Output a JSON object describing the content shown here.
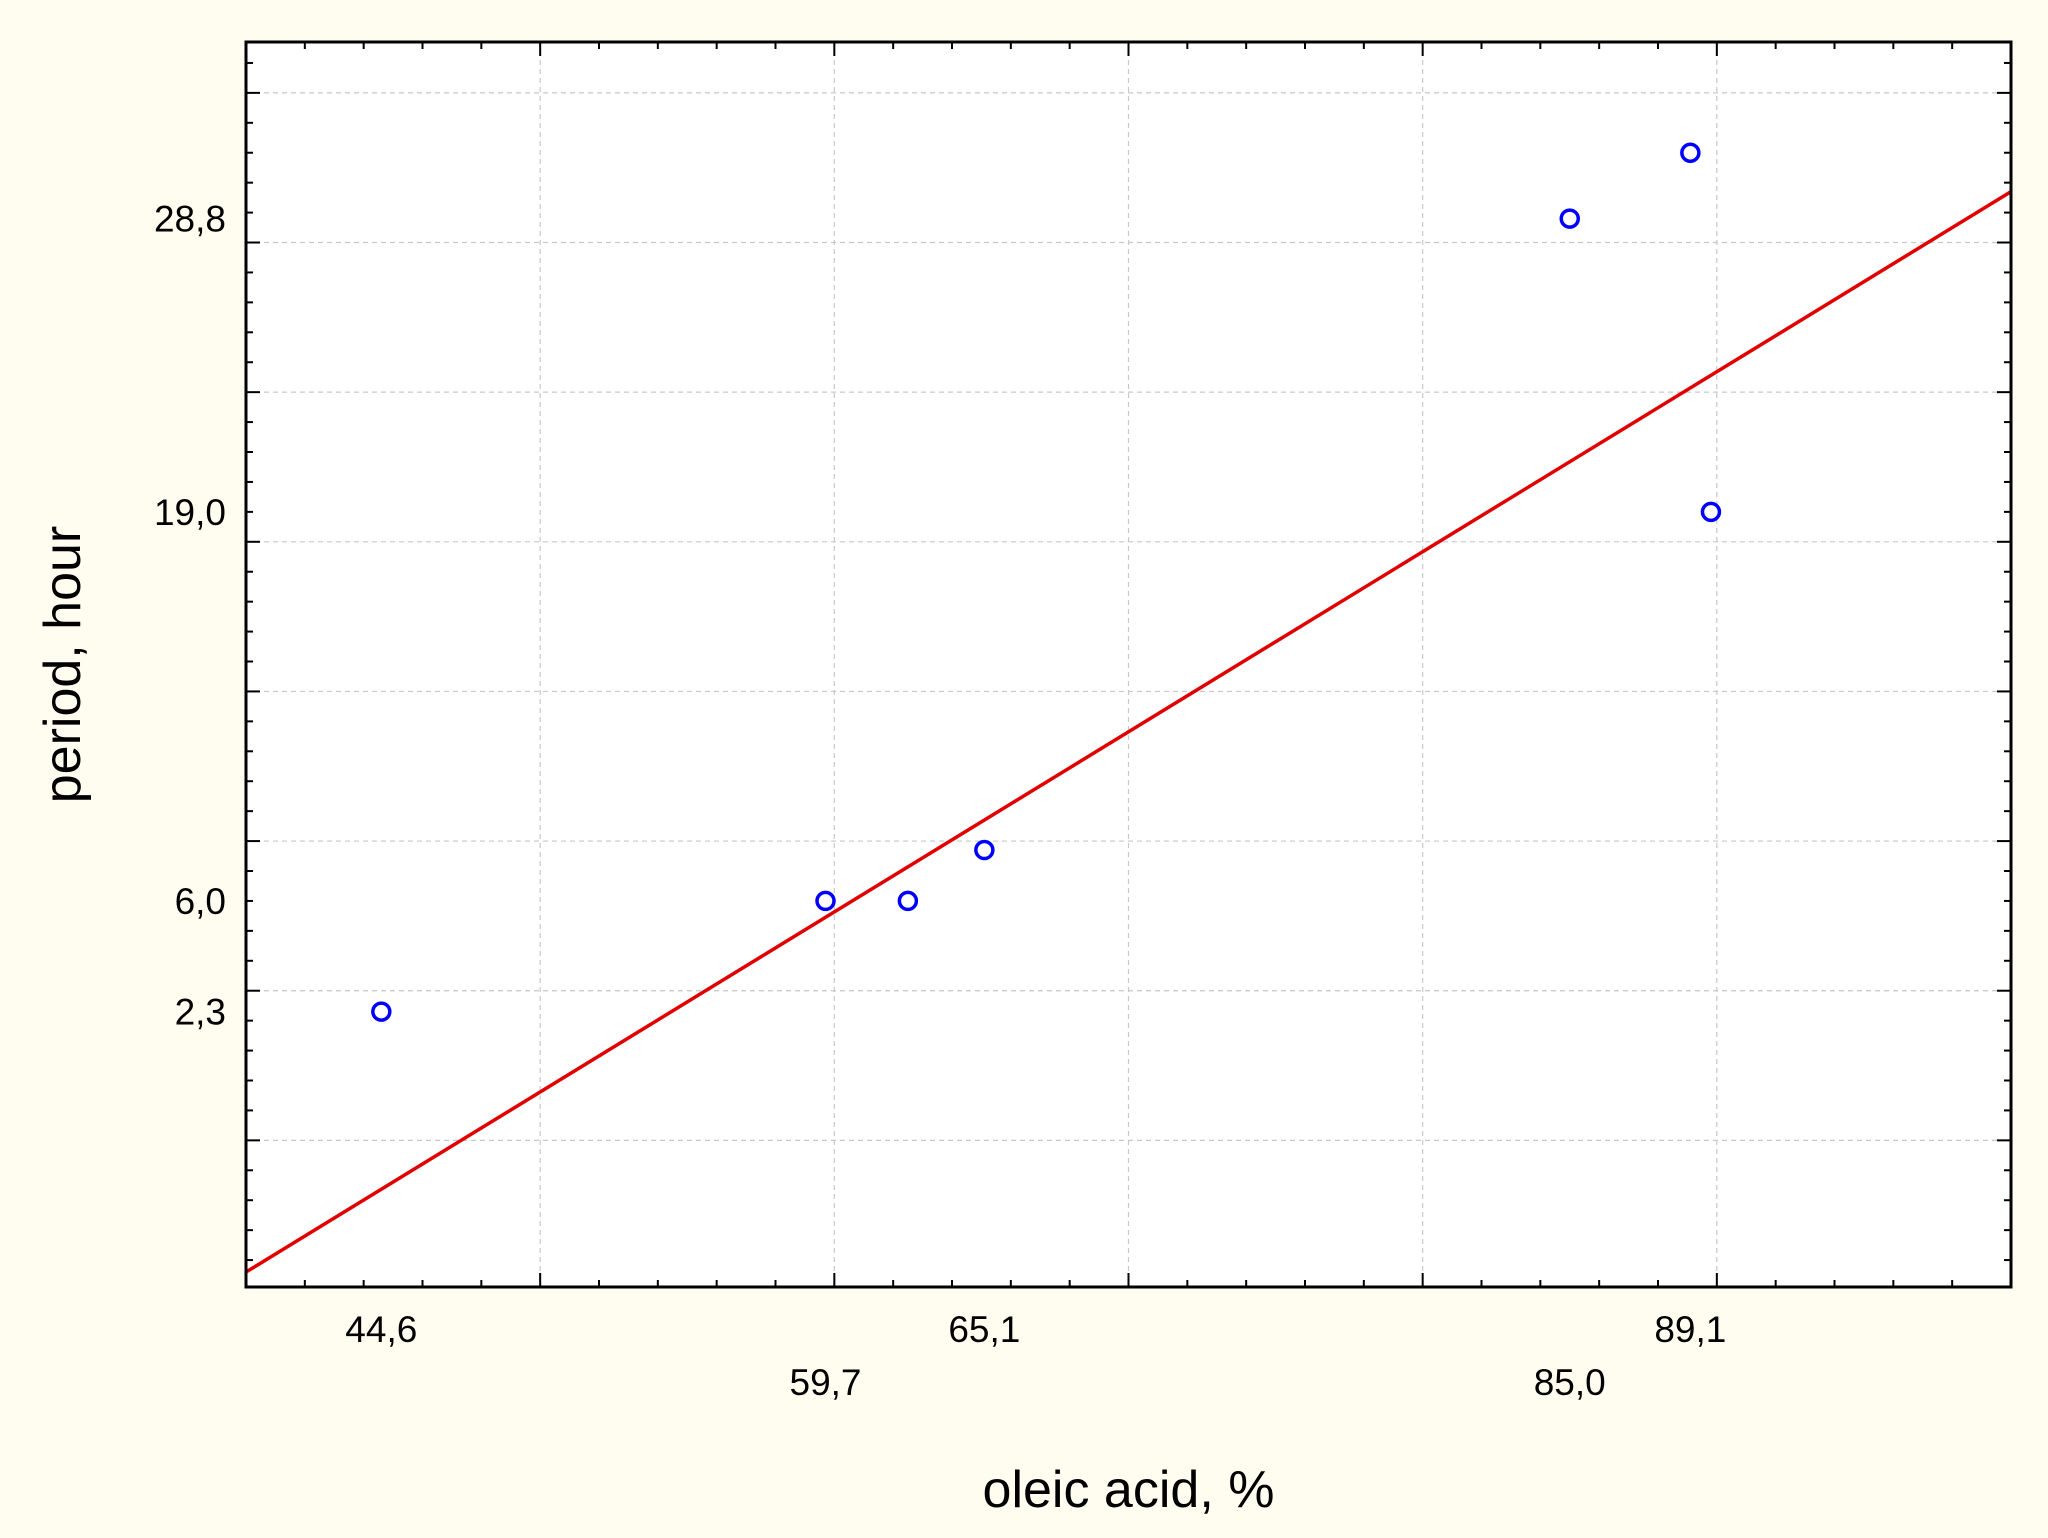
{
  "chart_data": {
    "type": "scatter",
    "title": "",
    "xlabel": "oleic acid, %",
    "ylabel": "period, hour",
    "xlim": [
      40.0,
      100.0
    ],
    "ylim": [
      -6.9,
      34.7
    ],
    "grid": true,
    "legend": "none",
    "x_tick_labels": [
      {
        "value": 44.6,
        "label": "44,6"
      },
      {
        "value": 59.7,
        "label": "59,7"
      },
      {
        "value": 65.1,
        "label": "65,1"
      },
      {
        "value": 85.0,
        "label": "85,0"
      },
      {
        "value": 89.1,
        "label": "89,1"
      }
    ],
    "y_tick_labels": [
      {
        "value": 2.3,
        "label": "2,3"
      },
      {
        "value": 6.0,
        "label": "6,0"
      },
      {
        "value": 19.0,
        "label": "19,0"
      },
      {
        "value": 28.8,
        "label": "28,8"
      }
    ],
    "x_major_ticks": [
      40,
      50,
      60,
      70,
      80,
      90,
      100
    ],
    "y_major_ticks": [
      -2,
      3,
      8,
      13,
      18,
      23,
      28,
      33
    ],
    "x_minor_step": 2,
    "y_minor_step": 1,
    "points": [
      {
        "x": 44.6,
        "y": 2.3
      },
      {
        "x": 59.7,
        "y": 6.0
      },
      {
        "x": 62.5,
        "y": 6.0
      },
      {
        "x": 65.1,
        "y": 7.7
      },
      {
        "x": 85.0,
        "y": 28.8
      },
      {
        "x": 89.1,
        "y": 31.0
      },
      {
        "x": 89.8,
        "y": 19.0
      }
    ],
    "fit_line": {
      "x": [
        40.0,
        100.0
      ],
      "y": [
        -6.4,
        29.7
      ]
    },
    "colors": {
      "background": "#fffdf0",
      "plot_background": "#ffffff",
      "points": "#0000ff",
      "fit_line": "#e00000",
      "grid": "#c8c8c8",
      "axis": "#000000"
    }
  }
}
